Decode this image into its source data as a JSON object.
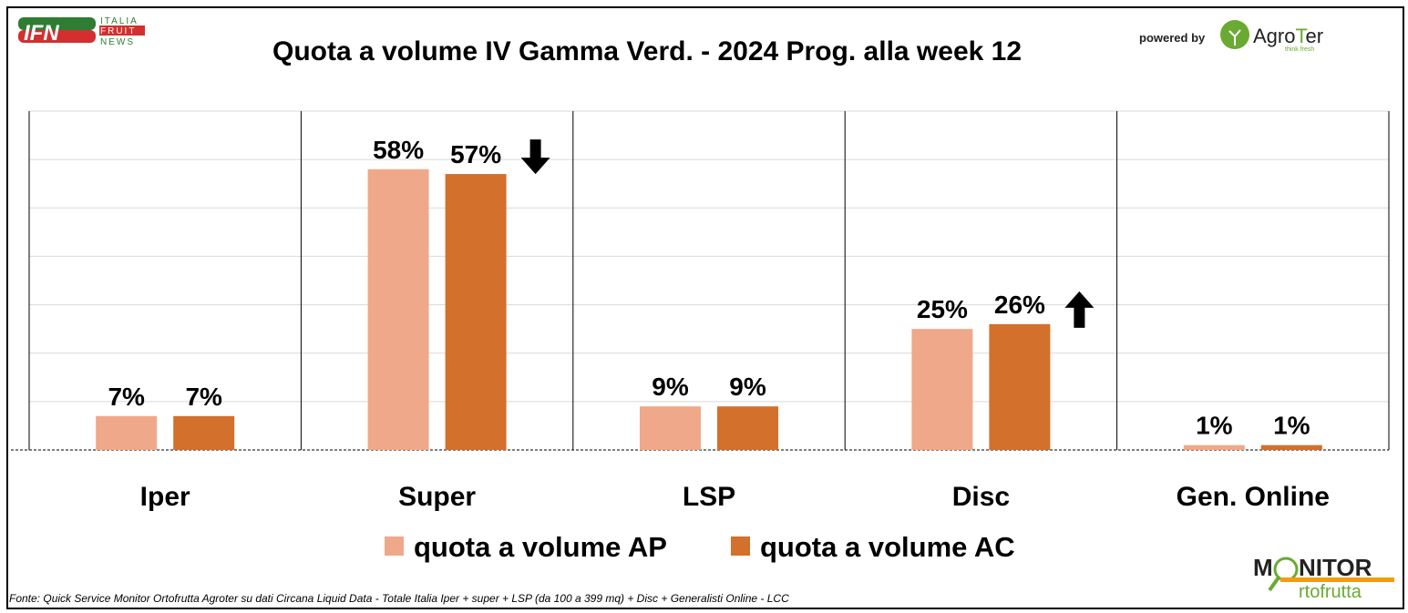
{
  "logos": {
    "ifn": "IFN ITALIA FRUIT NEWS",
    "agroter": "AgroTer think fresh",
    "monitor": "MONITOR ortofrutta"
  },
  "powered_by": "powered by",
  "source": "Fonte: Quick Service Monitor Ortofrutta Agroter su dati Circana Liquid Data - Totale Italia Iper + super + LSP (da 100 a 399 mq) + Disc + Generalisti Online - LCC",
  "colors": {
    "ap": "#F0A88A",
    "ac": "#D2702C"
  },
  "chart_data": {
    "type": "bar",
    "title": "Quota a volume IV Gamma Verd. - 2024 Prog. alla week 12",
    "categories": [
      "Iper",
      "Super",
      "LSP",
      "Disc",
      "Gen. Online"
    ],
    "series": [
      {
        "name": "quota a volume AP",
        "values": [
          7,
          58,
          9,
          25,
          1
        ],
        "labels": [
          "7%",
          "58%",
          "9%",
          "25%",
          "1%"
        ]
      },
      {
        "name": "quota a volume AC",
        "values": [
          7,
          57,
          9,
          26,
          1
        ],
        "labels": [
          "7%",
          "57%",
          "9%",
          "26%",
          "1%"
        ]
      }
    ],
    "annotations": [
      {
        "category": "Super",
        "type": "arrow-down"
      },
      {
        "category": "Disc",
        "type": "arrow-up"
      }
    ],
    "ylim": [
      0,
      70
    ],
    "grid": true,
    "legend": "bottom"
  }
}
